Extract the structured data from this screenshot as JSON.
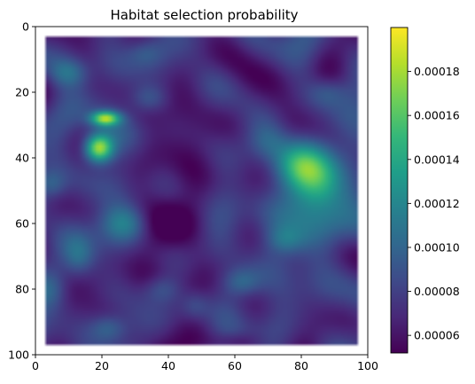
{
  "chart_data": {
    "type": "heatmap",
    "title": "Habitat selection probability",
    "xlabel": "",
    "ylabel": "",
    "xlim": [
      0,
      100
    ],
    "ylim": [
      100,
      0
    ],
    "x_ticks": [
      0,
      20,
      40,
      60,
      80,
      100
    ],
    "y_ticks": [
      0,
      20,
      40,
      60,
      80,
      100
    ],
    "data_extent": {
      "x": [
        3,
        97
      ],
      "y": [
        3,
        97
      ]
    },
    "background_value": 7.5e-05,
    "colormap": "viridis",
    "colormap_stops": [
      "#440154",
      "#482878",
      "#3e4a89",
      "#31688e",
      "#26828e",
      "#1f9e89",
      "#35b779",
      "#6ece58",
      "#b5de2b",
      "#fde725"
    ],
    "colorbar": {
      "min": 5.2e-05,
      "max": 0.0002,
      "ticks": [
        6e-05,
        8e-05,
        0.0001,
        0.00012,
        0.00014,
        0.00016,
        0.00018
      ],
      "tick_labels": [
        "0.00006",
        "0.00008",
        "0.00010",
        "0.00012",
        "0.00014",
        "0.00016",
        "0.00018"
      ]
    },
    "features": [
      {
        "x": 19,
        "y": 37,
        "sx": 3,
        "sy": 3,
        "value": 0.00012
      },
      {
        "x": 21,
        "y": 28,
        "sx": 3,
        "sy": 1.5,
        "value": 0.0001
      },
      {
        "x": 84,
        "y": 50,
        "sx": 7,
        "sy": 10,
        "value": 6.8e-05
      },
      {
        "x": 78,
        "y": 42,
        "sx": 5,
        "sy": 5,
        "value": 3e-05
      },
      {
        "x": 10,
        "y": 14,
        "sx": 4,
        "sy": 3,
        "value": 3e-05
      },
      {
        "x": 5,
        "y": 48,
        "sx": 3,
        "sy": 3,
        "value": 2.5e-05
      },
      {
        "x": 27,
        "y": 60,
        "sx": 5,
        "sy": 4,
        "value": 4e-05
      },
      {
        "x": 22,
        "y": 92,
        "sx": 4,
        "sy": 3,
        "value": 3.5e-05
      },
      {
        "x": 34,
        "y": 22,
        "sx": 4,
        "sy": 3,
        "value": 3e-05
      },
      {
        "x": 38,
        "y": 80,
        "sx": 4,
        "sy": 3,
        "value": 2.5e-05
      },
      {
        "x": 33,
        "y": 8,
        "sx": 4,
        "sy": 3,
        "value": 2.5e-05
      },
      {
        "x": 62,
        "y": 78,
        "sx": 4,
        "sy": 3,
        "value": 3e-05
      },
      {
        "x": 75,
        "y": 65,
        "sx": 4,
        "sy": 3,
        "value": 2.5e-05
      },
      {
        "x": 70,
        "y": 35,
        "sx": 4,
        "sy": 4,
        "value": 2e-05
      },
      {
        "x": 88,
        "y": 20,
        "sx": 4,
        "sy": 3,
        "value": 2e-05
      },
      {
        "x": 5,
        "y": 80,
        "sx": 3,
        "sy": 4,
        "value": 2e-05
      },
      {
        "x": 48,
        "y": 85,
        "sx": 3,
        "sy": 3,
        "value": 2e-05
      },
      {
        "x": 13,
        "y": 70,
        "sx": 3,
        "sy": 4,
        "value": 2e-05
      },
      {
        "x": 41,
        "y": 57,
        "sx": 6,
        "sy": 40,
        "value": -2e-05
      },
      {
        "x": 60,
        "y": 96,
        "sx": 5,
        "sy": 2,
        "value": -1.8e-05
      },
      {
        "x": 65,
        "y": 20,
        "sx": 8,
        "sy": 6,
        "value": -1.2e-05
      }
    ]
  }
}
